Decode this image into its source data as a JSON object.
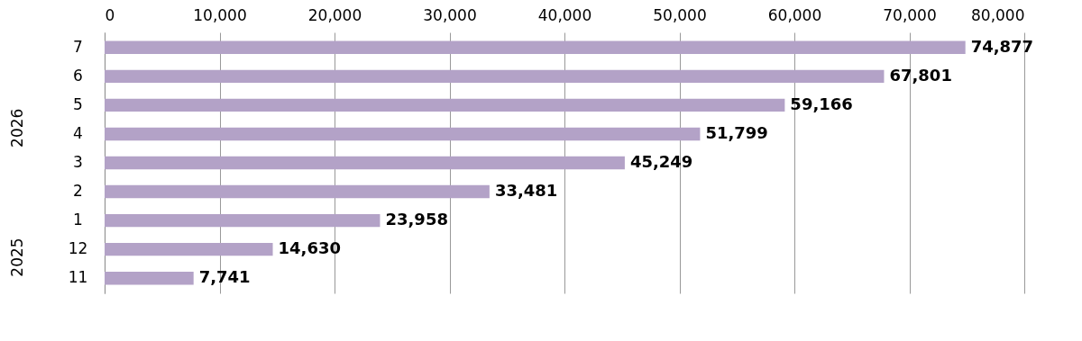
{
  "chart_data": {
    "type": "bar",
    "orientation": "horizontal",
    "categories": [
      "7",
      "6",
      "5",
      "4",
      "3",
      "2",
      "1",
      "12",
      "11"
    ],
    "values": [
      74877,
      67801,
      59166,
      51799,
      45249,
      33481,
      23958,
      14630,
      7741
    ],
    "value_labels": [
      "74,877",
      "67,801",
      "59,166",
      "51,799",
      "45,249",
      "33,481",
      "23,958",
      "14,630",
      "7,741"
    ],
    "color": "#b3a2c7",
    "xlim": [
      0,
      80000
    ],
    "xticks": [
      {
        "value": 0,
        "label": "0"
      },
      {
        "value": 10000,
        "label": "10,000"
      },
      {
        "value": 20000,
        "label": "20,000"
      },
      {
        "value": 30000,
        "label": "30,000"
      },
      {
        "value": 40000,
        "label": "40,000"
      },
      {
        "value": 50000,
        "label": "50,000"
      },
      {
        "value": 60000,
        "label": "60,000"
      },
      {
        "value": 70000,
        "label": "70,000"
      },
      {
        "value": 80000,
        "label": "80,000"
      }
    ],
    "grid": "x",
    "annotations": [
      "2026",
      "2025"
    ]
  }
}
